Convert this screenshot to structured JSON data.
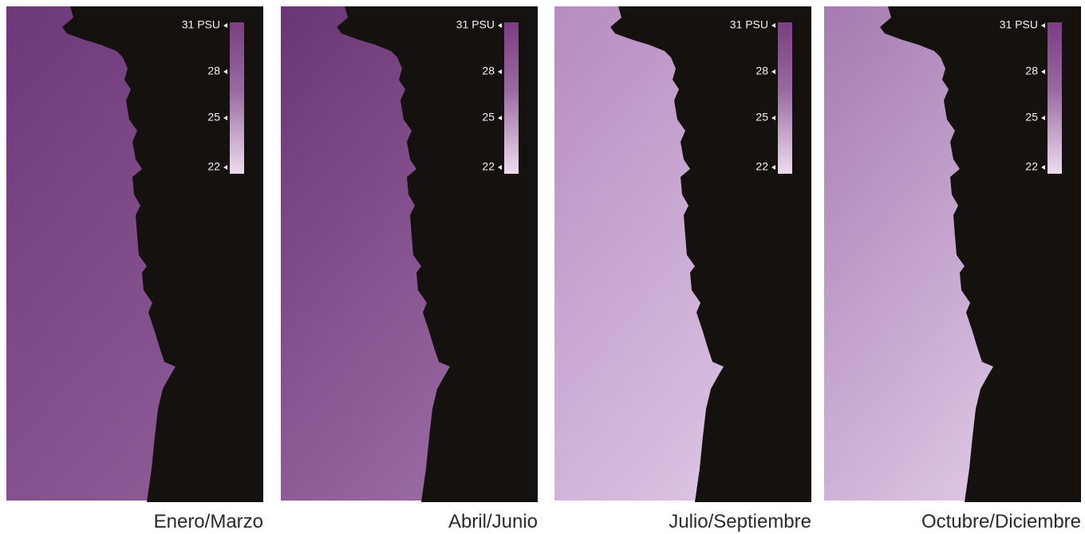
{
  "panels": [
    {
      "caption": "Enero/Marzo",
      "colorbar_labels": [
        "31 PSU",
        "28",
        "25",
        "22"
      ],
      "sea_colors": [
        "#6d3878",
        "#8d5a96"
      ]
    },
    {
      "caption": "Abril/Junio",
      "colorbar_labels": [
        "31 PSU",
        "28",
        "25",
        "22"
      ],
      "sea_colors": [
        "#6a3575",
        "#9a6aa3"
      ]
    },
    {
      "caption": "Julio/Septiembre",
      "colorbar_labels": [
        "31 PSU",
        "28",
        "25",
        "22"
      ],
      "sea_colors": [
        "#b58cc0",
        "#dcc3e3"
      ]
    },
    {
      "caption": "Octubre/Diciembre",
      "colorbar_labels": [
        "31 PSU",
        "28",
        "25",
        "22"
      ],
      "sea_colors": [
        "#a57bb1",
        "#dec6e4"
      ]
    }
  ]
}
